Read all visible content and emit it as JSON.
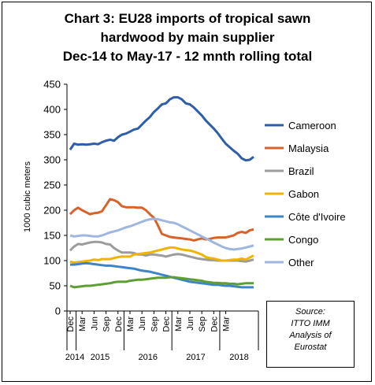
{
  "chart_data": {
    "type": "line",
    "title_lines": [
      "Chart 3: EU28 imports of tropical sawn",
      "hardwood  by main supplier",
      "Dec-14 to May-17 - 12 mnth rolling total"
    ],
    "ylabel": "1000 cubic meters",
    "ylim": [
      0,
      450
    ],
    "yticks": [
      "0",
      "50",
      "100",
      "150",
      "200",
      "250",
      "300",
      "350",
      "400",
      "450"
    ],
    "xtick_labels": [
      "Dec",
      "Mar",
      "Jun",
      "Sep",
      "Dec",
      "Mar",
      "Jun",
      "Sep",
      "Dec",
      "Mar",
      "Jun",
      "Sep",
      "Dec",
      "Mar"
    ],
    "year_labels": [
      "2014",
      "2015",
      "2016",
      "2017",
      "2018"
    ],
    "legend_position": "right",
    "grid": false,
    "series": [
      {
        "name": "Cameroon",
        "color": "#2e5ea8",
        "values": [
          320,
          332,
          330,
          331,
          330,
          331,
          332,
          331,
          335,
          338,
          340,
          338,
          345,
          350,
          352,
          356,
          360,
          362,
          370,
          378,
          385,
          395,
          402,
          410,
          412,
          420,
          424,
          424,
          420,
          412,
          410,
          404,
          396,
          388,
          378,
          370,
          362,
          353,
          342,
          332,
          325,
          318,
          312,
          303,
          299,
          300,
          306
        ]
      },
      {
        "name": "Malaysia",
        "color": "#d9622b",
        "values": [
          192,
          200,
          205,
          200,
          196,
          192,
          194,
          195,
          198,
          210,
          222,
          220,
          216,
          208,
          206,
          206,
          206,
          205,
          205,
          200,
          192,
          185,
          170,
          153,
          150,
          147,
          146,
          145,
          144,
          143,
          142,
          140,
          142,
          144,
          142,
          143,
          145,
          146,
          146,
          146,
          148,
          150,
          155,
          157,
          155,
          160,
          162
        ]
      },
      {
        "name": "Brazil",
        "color": "#9c9c9c",
        "values": [
          120,
          128,
          133,
          132,
          134,
          136,
          137,
          137,
          136,
          133,
          132,
          125,
          120,
          116,
          116,
          116,
          115,
          112,
          112,
          110,
          112,
          112,
          111,
          110,
          108,
          110,
          112,
          113,
          112,
          110,
          108,
          106,
          104,
          103,
          102,
          101,
          101,
          100,
          100,
          100,
          100,
          100,
          100,
          99,
          98,
          100,
          102
        ]
      },
      {
        "name": "Gabon",
        "color": "#f0b400",
        "values": [
          98,
          96,
          97,
          98,
          99,
          100,
          102,
          101,
          103,
          103,
          103,
          105,
          107,
          108,
          108,
          108,
          112,
          113,
          114,
          115,
          116,
          118,
          120,
          122,
          124,
          126,
          126,
          124,
          122,
          121,
          120,
          118,
          115,
          112,
          107,
          105,
          104,
          102,
          100,
          100,
          101,
          102,
          102,
          104,
          102,
          106,
          110
        ]
      },
      {
        "name": "Côte d'Ivoire",
        "color": "#3d85c6",
        "values": [
          92,
          92,
          93,
          94,
          95,
          94,
          93,
          92,
          91,
          90,
          90,
          89,
          88,
          87,
          86,
          85,
          84,
          82,
          80,
          79,
          78,
          76,
          74,
          72,
          70,
          68,
          66,
          64,
          62,
          60,
          58,
          57,
          56,
          55,
          54,
          53,
          52,
          52,
          51,
          50,
          50,
          49,
          48,
          47,
          47,
          47,
          47
        ]
      },
      {
        "name": "Congo",
        "color": "#5e9e32",
        "values": [
          50,
          47,
          48,
          49,
          50,
          50,
          51,
          52,
          53,
          54,
          55,
          57,
          58,
          58,
          58,
          60,
          61,
          62,
          62,
          63,
          64,
          65,
          66,
          66,
          66,
          67,
          67,
          66,
          65,
          64,
          63,
          62,
          61,
          60,
          58,
          57,
          56,
          56,
          55,
          55,
          54,
          54,
          53,
          54,
          55,
          55,
          55
        ]
      },
      {
        "name": "Other",
        "color": "#9fb6e0",
        "values": [
          150,
          148,
          149,
          150,
          150,
          149,
          148,
          148,
          150,
          153,
          156,
          158,
          160,
          163,
          166,
          168,
          171,
          174,
          177,
          180,
          182,
          183,
          182,
          180,
          178,
          176,
          175,
          172,
          168,
          164,
          160,
          156,
          152,
          148,
          144,
          140,
          136,
          132,
          128,
          125,
          123,
          122,
          123,
          124,
          126,
          128,
          130
        ]
      }
    ]
  },
  "source": {
    "lines": [
      "Source:",
      "ITTO IMM",
      "Analysis of",
      "Eurostat"
    ]
  }
}
